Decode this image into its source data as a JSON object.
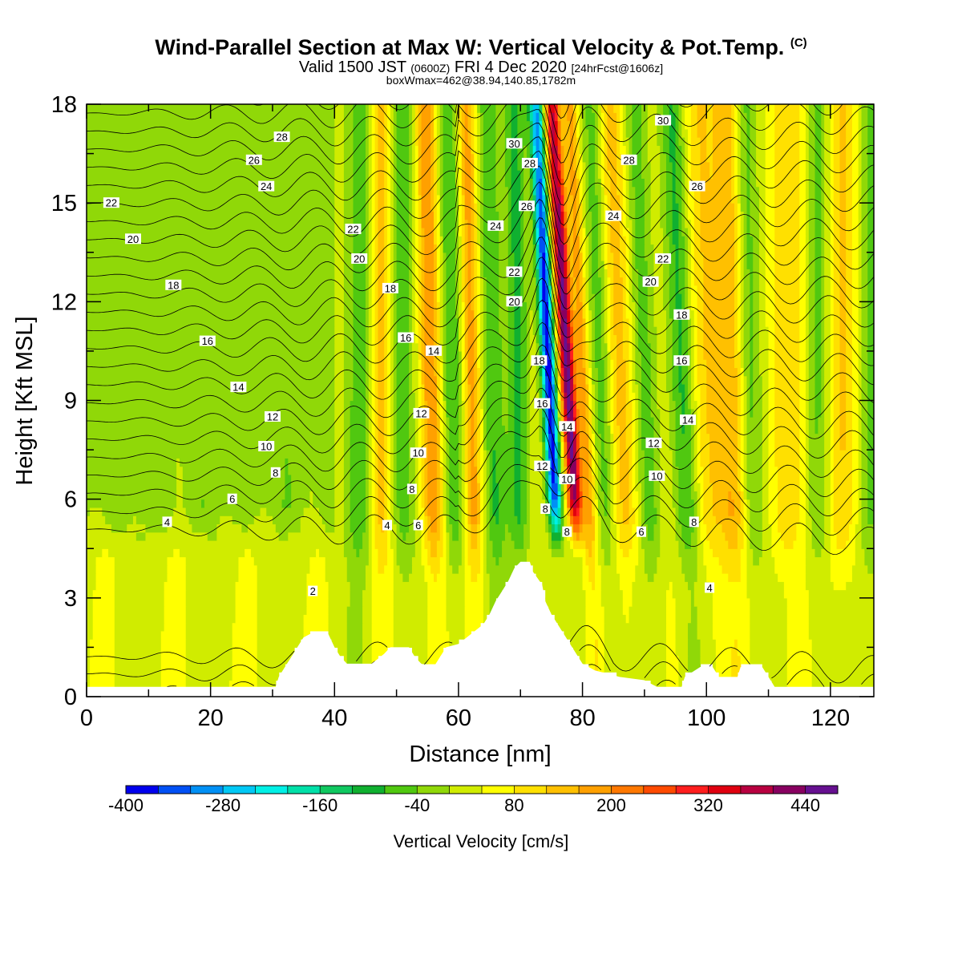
{
  "header": {
    "title": "Wind-Parallel Section at Max W: Vertical Velocity & Pot.Temp.",
    "title_mark": "(C)",
    "subtitle_a": "Valid 1500 JST",
    "subtitle_b": "(0600Z)",
    "subtitle_c": "FRI 4 Dec 2020",
    "subtitle_d": "[24hrFcst@1606z]",
    "subtitle2": "boxWmax=462@38.94,140.85,1782m"
  },
  "chart_data": {
    "type": "heatmap",
    "xlabel": "Distance [nm]",
    "ylabel": "Height [Kft MSL]",
    "xlim": [
      0,
      127
    ],
    "ylim": [
      0,
      18
    ],
    "x_ticks": [
      "0",
      "20",
      "40",
      "60",
      "80",
      "100",
      "120"
    ],
    "y_ticks": [
      "0",
      "3",
      "6",
      "9",
      "12",
      "15",
      "18"
    ],
    "colorbar": {
      "label": "Vertical Velocity [cm/s]",
      "tick_labels": [
        "-400",
        "-280",
        "-160",
        "-40",
        "80",
        "200",
        "320",
        "440"
      ],
      "levels": [
        -400,
        -360,
        -320,
        -280,
        -240,
        -200,
        -160,
        -120,
        -80,
        -40,
        0,
        40,
        80,
        120,
        160,
        200,
        240,
        280,
        320,
        360,
        400,
        440,
        480
      ],
      "colors": [
        "#0000ee",
        "#0050f5",
        "#0090f5",
        "#00c8f5",
        "#00f0e6",
        "#00e0a8",
        "#10c860",
        "#10b030",
        "#50c810",
        "#90d808",
        "#d0ec00",
        "#ffff00",
        "#ffe000",
        "#ffc000",
        "#ffa000",
        "#ff7800",
        "#ff4a00",
        "#ff1e1e",
        "#e00010",
        "#b80040",
        "#880060",
        "#661090"
      ]
    },
    "theta_contour_labels": [
      {
        "v": "2",
        "x": 36.5,
        "y": 3.2
      },
      {
        "v": "4",
        "x": 13,
        "y": 5.3
      },
      {
        "v": "4",
        "x": 48.5,
        "y": 5.2
      },
      {
        "v": "4",
        "x": 100.5,
        "y": 3.3
      },
      {
        "v": "6",
        "x": 23.5,
        "y": 6
      },
      {
        "v": "6",
        "x": 53.5,
        "y": 5.2
      },
      {
        "v": "6",
        "x": 89.5,
        "y": 5
      },
      {
        "v": "8",
        "x": 30.5,
        "y": 6.8
      },
      {
        "v": "8",
        "x": 52.5,
        "y": 6.3
      },
      {
        "v": "8",
        "x": 74,
        "y": 5.7
      },
      {
        "v": "8",
        "x": 77.5,
        "y": 5
      },
      {
        "v": "8",
        "x": 98,
        "y": 5.3
      },
      {
        "v": "10",
        "x": 29,
        "y": 7.6
      },
      {
        "v": "10",
        "x": 53.5,
        "y": 7.4
      },
      {
        "v": "10",
        "x": 77.5,
        "y": 6.6
      },
      {
        "v": "10",
        "x": 92,
        "y": 6.7
      },
      {
        "v": "12",
        "x": 30,
        "y": 8.5
      },
      {
        "v": "12",
        "x": 54,
        "y": 8.6
      },
      {
        "v": "12",
        "x": 73.5,
        "y": 7
      },
      {
        "v": "12",
        "x": 91.5,
        "y": 7.7
      },
      {
        "v": "14",
        "x": 24.5,
        "y": 9.4
      },
      {
        "v": "14",
        "x": 56,
        "y": 10.5
      },
      {
        "v": "14",
        "x": 77.5,
        "y": 8.2
      },
      {
        "v": "14",
        "x": 97,
        "y": 8.4
      },
      {
        "v": "16",
        "x": 19.5,
        "y": 10.8
      },
      {
        "v": "16",
        "x": 51.5,
        "y": 10.9
      },
      {
        "v": "16",
        "x": 73.5,
        "y": 8.9
      },
      {
        "v": "16",
        "x": 96,
        "y": 10.2
      },
      {
        "v": "18",
        "x": 14,
        "y": 12.5
      },
      {
        "v": "18",
        "x": 49,
        "y": 12.4
      },
      {
        "v": "18",
        "x": 73,
        "y": 10.2
      },
      {
        "v": "18",
        "x": 96,
        "y": 11.6
      },
      {
        "v": "20",
        "x": 7.5,
        "y": 13.9
      },
      {
        "v": "20",
        "x": 44,
        "y": 13.3
      },
      {
        "v": "20",
        "x": 69,
        "y": 12
      },
      {
        "v": "20",
        "x": 91,
        "y": 12.6
      },
      {
        "v": "22",
        "x": 4,
        "y": 15
      },
      {
        "v": "22",
        "x": 43,
        "y": 14.2
      },
      {
        "v": "22",
        "x": 69,
        "y": 12.9
      },
      {
        "v": "22",
        "x": 93,
        "y": 13.3
      },
      {
        "v": "24",
        "x": 29,
        "y": 15.5
      },
      {
        "v": "24",
        "x": 66,
        "y": 14.3
      },
      {
        "v": "24",
        "x": 85,
        "y": 14.6
      },
      {
        "v": "26",
        "x": 27,
        "y": 16.3
      },
      {
        "v": "26",
        "x": 71,
        "y": 14.9
      },
      {
        "v": "26",
        "x": 98.5,
        "y": 15.5
      },
      {
        "v": "28",
        "x": 31.5,
        "y": 17
      },
      {
        "v": "28",
        "x": 71.5,
        "y": 16.2
      },
      {
        "v": "28",
        "x": 87.5,
        "y": 16.3
      },
      {
        "v": "30",
        "x": 69,
        "y": 16.8
      },
      {
        "v": "30",
        "x": 93,
        "y": 17.5
      }
    ],
    "terrain_kft": [
      [
        0,
        0.3
      ],
      [
        30.5,
        0.3
      ],
      [
        31,
        0.6
      ],
      [
        32,
        0.9
      ],
      [
        33,
        1.2
      ],
      [
        34,
        1.5
      ],
      [
        35,
        1.8
      ],
      [
        36,
        1.9
      ],
      [
        39,
        1.9
      ],
      [
        40,
        1.5
      ],
      [
        41,
        1.2
      ],
      [
        42,
        1.0
      ],
      [
        46,
        1.0
      ],
      [
        48,
        1.3
      ],
      [
        49,
        1.5
      ],
      [
        52,
        1.5
      ],
      [
        53,
        1.2
      ],
      [
        54,
        1.0
      ],
      [
        56,
        0.9
      ],
      [
        57,
        1.2
      ],
      [
        58,
        1.5
      ],
      [
        60,
        1.6
      ],
      [
        62,
        1.9
      ],
      [
        64,
        2.2
      ],
      [
        65,
        2.5
      ],
      [
        66,
        2.9
      ],
      [
        67,
        3.2
      ],
      [
        68,
        3.5
      ],
      [
        69,
        3.9
      ],
      [
        70,
        4.1
      ],
      [
        71.5,
        4.1
      ],
      [
        72,
        3.8
      ],
      [
        73.5,
        3.4
      ],
      [
        74,
        2.9
      ],
      [
        75,
        2.5
      ],
      [
        76,
        2.2
      ],
      [
        77,
        1.9
      ],
      [
        78,
        1.6
      ],
      [
        79,
        1.3
      ],
      [
        80,
        1.0
      ],
      [
        82,
        0.8
      ],
      [
        86,
        0.6
      ],
      [
        90,
        0.5
      ],
      [
        92,
        0.3
      ],
      [
        96,
        0.3
      ],
      [
        96.5,
        0.6
      ],
      [
        99,
        0.9
      ],
      [
        101,
        0.9
      ],
      [
        102,
        0.6
      ],
      [
        105,
        0.6
      ],
      [
        105.5,
        0.9
      ],
      [
        109,
        0.9
      ],
      [
        110,
        0.6
      ],
      [
        111,
        0.3
      ],
      [
        127,
        0.3
      ]
    ]
  }
}
